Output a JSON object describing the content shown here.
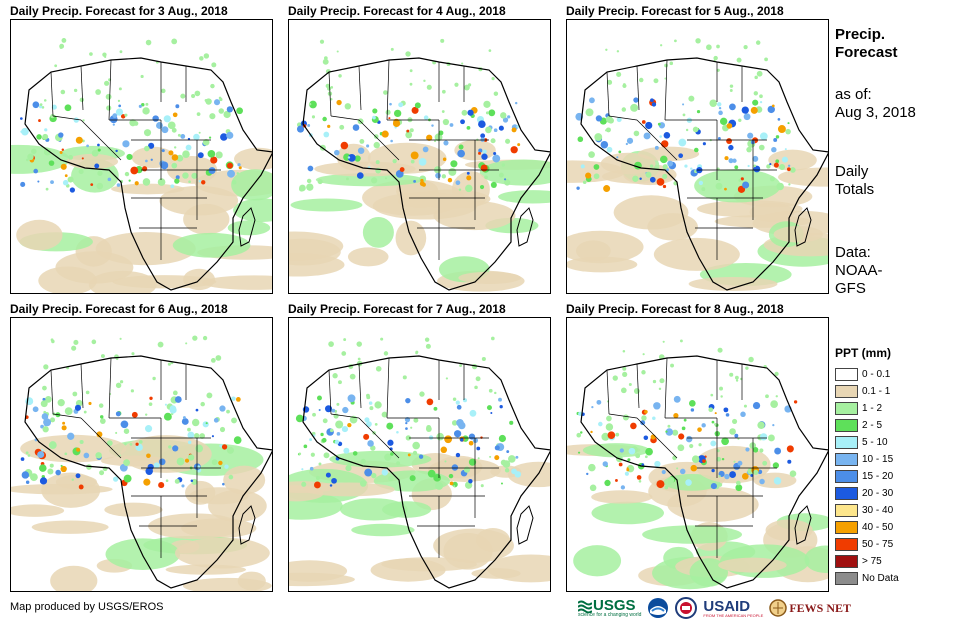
{
  "panels": [
    {
      "title": "Daily Precip. Forecast for 3 Aug., 2018"
    },
    {
      "title": "Daily Precip. Forecast for 4 Aug., 2018"
    },
    {
      "title": "Daily Precip. Forecast for 5 Aug., 2018"
    },
    {
      "title": "Daily Precip. Forecast for 6 Aug., 2018"
    },
    {
      "title": "Daily Precip. Forecast for 7 Aug., 2018"
    },
    {
      "title": "Daily Precip. Forecast for 8 Aug., 2018"
    }
  ],
  "side_info": {
    "heading_line1": "Precip.",
    "heading_line2": "Forecast",
    "asof_line1": "as of:",
    "asof_line2": "Aug 3, 2018",
    "daily_line1": "Daily",
    "daily_line2": "Totals",
    "data_line1": "Data:",
    "data_line2": "NOAA-",
    "data_line3": "GFS"
  },
  "legend": {
    "title": "PPT (mm)",
    "items": [
      {
        "label": "0 - 0.1",
        "color": "#ffffff"
      },
      {
        "label": "0.1 - 1",
        "color": "#e8d6b4"
      },
      {
        "label": "1 - 2",
        "color": "#a6f0a0"
      },
      {
        "label": "2 - 5",
        "color": "#5ee05a"
      },
      {
        "label": "5 - 10",
        "color": "#a8f0f8"
      },
      {
        "label": "10 - 15",
        "color": "#78b4f0"
      },
      {
        "label": "15 - 20",
        "color": "#4c8ee8"
      },
      {
        "label": "20 - 30",
        "color": "#1c5ae0"
      },
      {
        "label": "30 - 40",
        "color": "#fde68c"
      },
      {
        "label": "40 - 50",
        "color": "#f5a000"
      },
      {
        "label": "50 - 75",
        "color": "#f03c00"
      },
      {
        "label": "> 75",
        "color": "#a01010"
      },
      {
        "label": "No Data",
        "color": "#8c8c8c"
      }
    ]
  },
  "footer": {
    "credit": "Map produced by USGS/EROS",
    "logos": {
      "usgs": "USGS",
      "usgs_tagline": "science for a changing world",
      "usaid": "USAID",
      "usaid_tagline": "FROM THE AMERICAN PEOPLE",
      "fewsnet": "FEWS NET"
    }
  }
}
